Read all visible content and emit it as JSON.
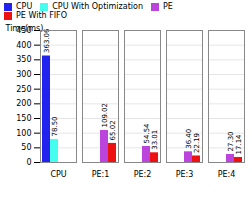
{
  "chart_data": {
    "type": "bar",
    "categories": [
      "CPU",
      "PE:1",
      "PE:2",
      "PE:3",
      "PE:4"
    ],
    "series": [
      {
        "name": "CPU",
        "color": "#2222ee",
        "values": [
          363.06,
          0,
          0,
          0,
          0
        ],
        "value_labels": [
          "363.06",
          null,
          null,
          null,
          null
        ]
      },
      {
        "name": "CPU With Optimization",
        "color": "#44ffee",
        "values": [
          78.5,
          0,
          0,
          0,
          0
        ],
        "value_labels": [
          "78.50",
          null,
          null,
          null,
          null
        ]
      },
      {
        "name": "PE",
        "color": "#bb44dd",
        "values": [
          0,
          109.02,
          54.54,
          36.4,
          27.3
        ],
        "value_labels": [
          null,
          "109.02",
          "54.54",
          "36.40",
          "27.30"
        ]
      },
      {
        "name": "PE With FIFO",
        "color": "#ee1111",
        "values": [
          0,
          65.02,
          33.01,
          22.19,
          17.14
        ],
        "value_labels": [
          null,
          "65.02",
          "33.01",
          "22.19",
          "17.14"
        ]
      }
    ],
    "ylabel": "Time(ms)",
    "ylim": [
      0,
      450
    ],
    "yticks": [
      0,
      50,
      100,
      150,
      200,
      250,
      300,
      350,
      400,
      450
    ],
    "grid": true,
    "legend": "upper right",
    "data_labels": true
  }
}
